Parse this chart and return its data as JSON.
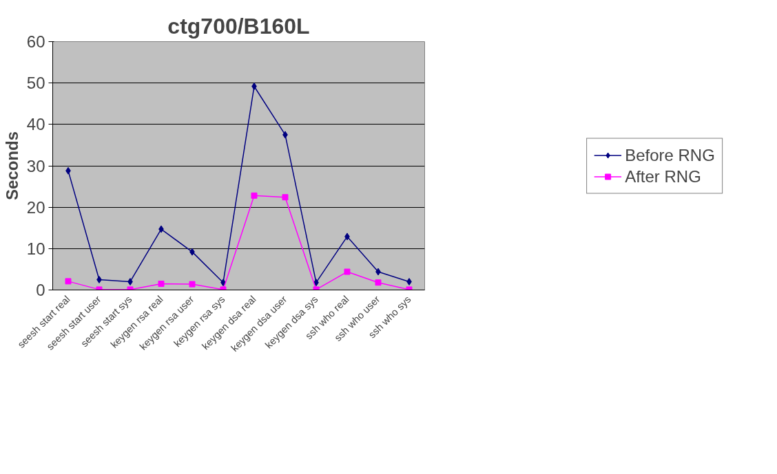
{
  "chart_data": {
    "type": "line",
    "title": "ctg700/B160L",
    "ylabel": "Seconds",
    "categories": [
      "seesh start real",
      "seesh start user",
      "seesh start sys",
      "keygen rsa real",
      "keygen rsa user",
      "keygen rsa sys",
      "keygen dsa real",
      "keygen dsa user",
      "keygen dsa sys",
      "ssh who real",
      "ssh who user",
      "ssh who sys"
    ],
    "series": [
      {
        "name": "Before RNG",
        "color": "#000080",
        "marker": "diamond",
        "values": [
          28.8,
          2.5,
          2.0,
          14.7,
          9.2,
          1.8,
          49.2,
          37.5,
          1.8,
          12.9,
          4.4,
          2.0
        ]
      },
      {
        "name": "After RNG",
        "color": "#ff00ff",
        "marker": "square",
        "values": [
          2.1,
          0.1,
          0.1,
          1.5,
          1.4,
          0.1,
          22.8,
          22.4,
          0.1,
          4.4,
          1.8,
          0.1
        ]
      }
    ],
    "ylim": [
      0,
      60
    ],
    "yticks": [
      0,
      10,
      20,
      30,
      40,
      50,
      60
    ],
    "grid": "y",
    "legend": "right",
    "line_style": "solid"
  }
}
